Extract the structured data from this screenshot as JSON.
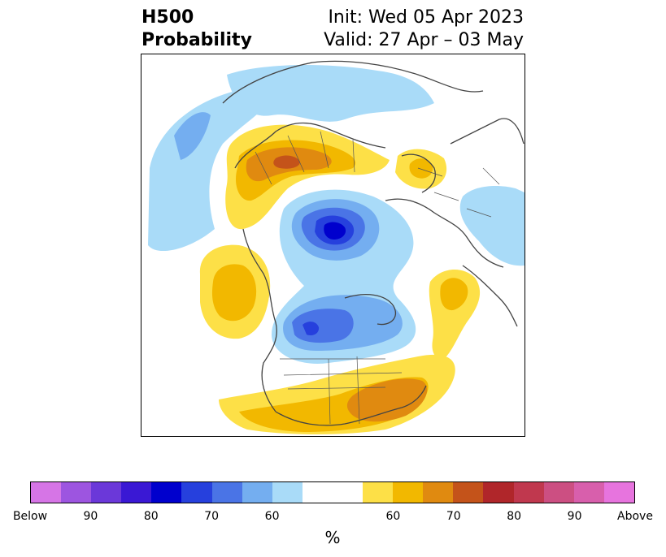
{
  "title": {
    "left_line1": "H500",
    "left_line2": "Probability",
    "right_line1": "Init: Wed 05 Apr 2023",
    "right_line2": "Valid: 27 Apr – 03 May"
  },
  "colorbar": {
    "colors": [
      "#d675e6",
      "#9d55e0",
      "#6b38d9",
      "#3a18d4",
      "#0000cd",
      "#2640dd",
      "#4a74e6",
      "#74aef0",
      "#a9dbf8",
      "#ffffff",
      "#ffffff",
      "#fde047",
      "#f2b800",
      "#e08a10",
      "#c4531a",
      "#b0262a",
      "#c0384e",
      "#cc4f82",
      "#d85fac",
      "#e774de"
    ],
    "ticks": [
      "Below",
      "90",
      "80",
      "70",
      "60",
      "60",
      "70",
      "80",
      "90",
      "Above"
    ],
    "unit": "%"
  },
  "map": {
    "projection": "north-polar-stereographic",
    "variable": "500 hPa height probability (below / above normal)"
  }
}
